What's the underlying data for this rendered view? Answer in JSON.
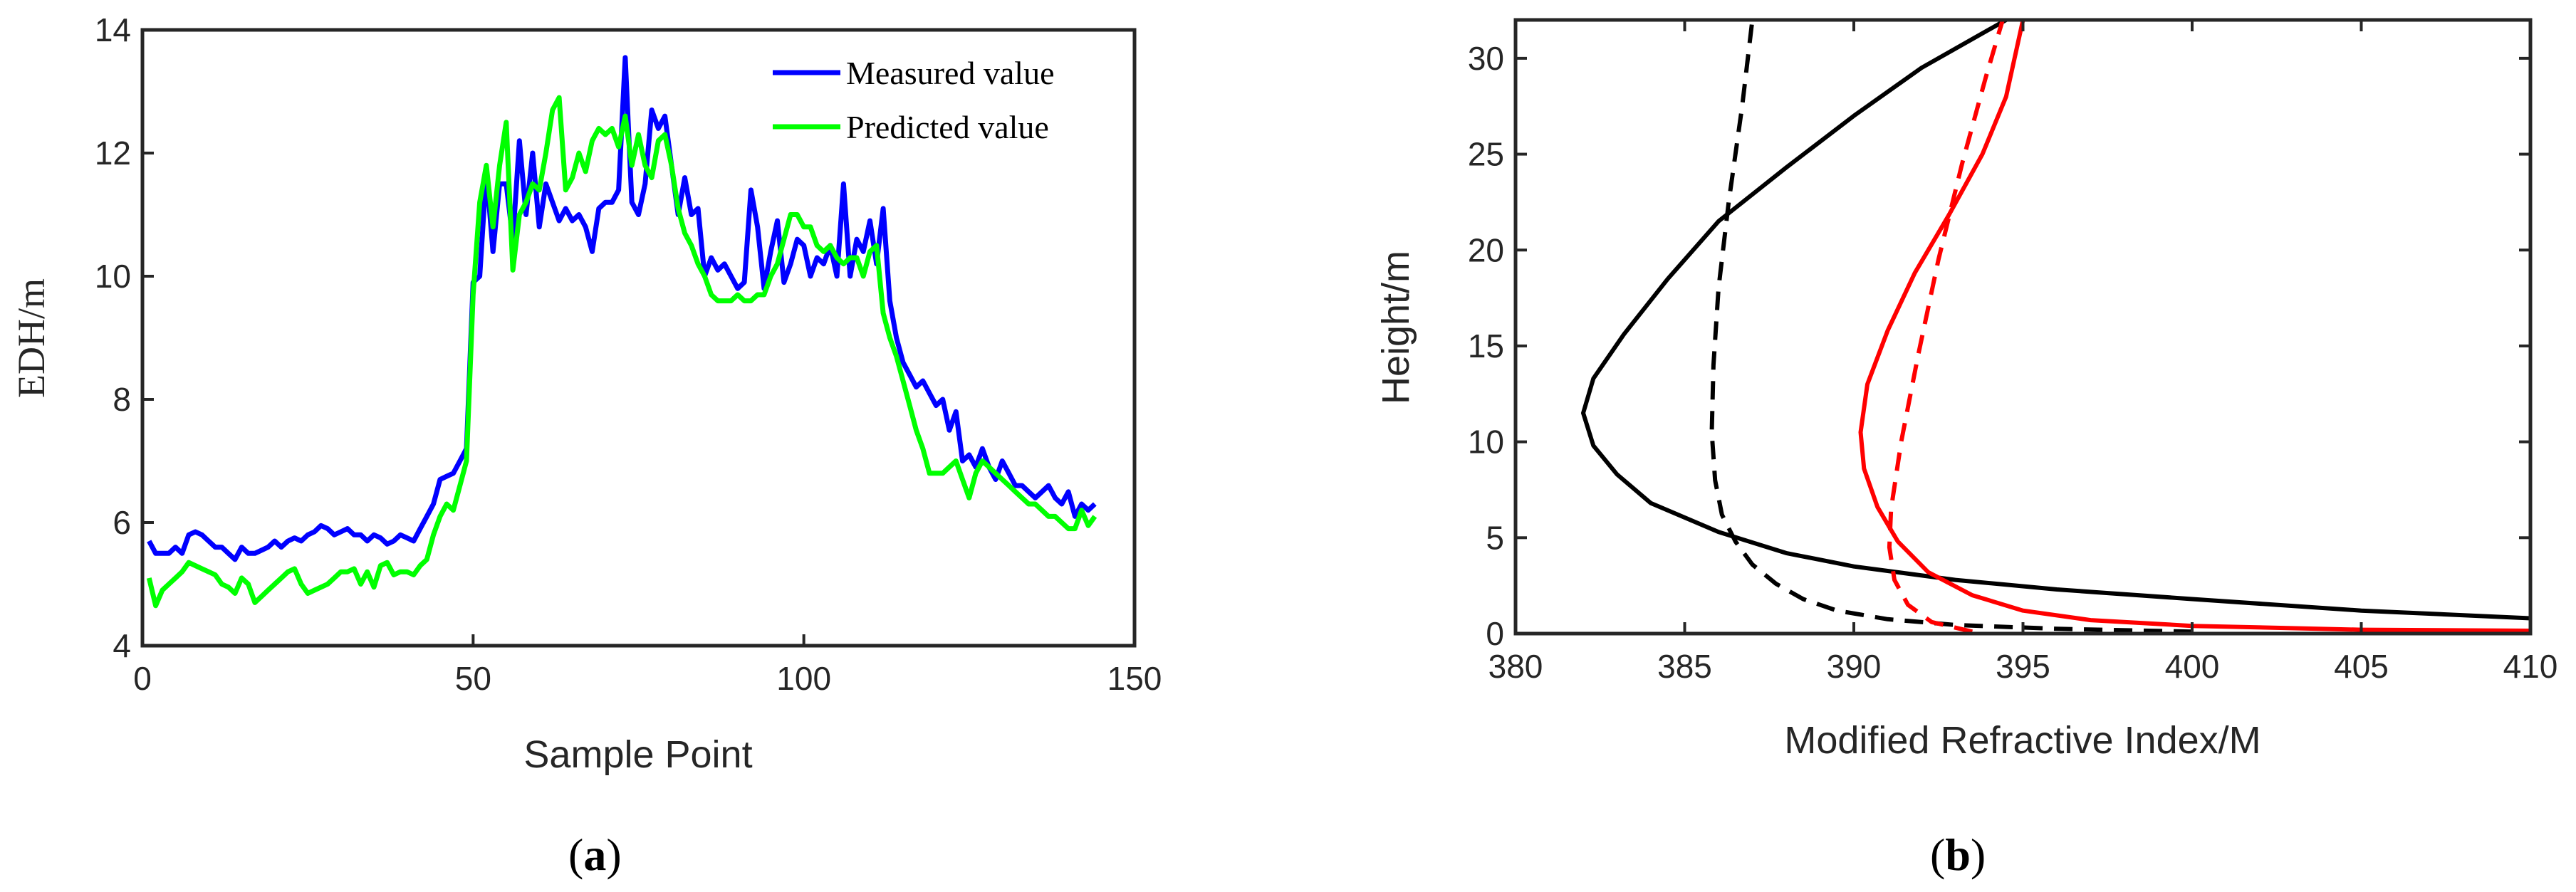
{
  "chart_data": [
    {
      "type": "line",
      "panel_label_open": "(",
      "panel_label_letter": "a",
      "panel_label_close": ")",
      "xlabel": "Sample Point",
      "ylabel": "EDH/m",
      "xlim": [
        0,
        150
      ],
      "ylim": [
        4,
        14
      ],
      "xticks": [
        0,
        50,
        100,
        150
      ],
      "yticks": [
        4,
        6,
        8,
        10,
        12,
        14
      ],
      "legend_position": "top-right",
      "series": [
        {
          "name": "Measured value",
          "color": "#0000ff",
          "x": [
            1,
            2,
            3,
            4,
            5,
            6,
            7,
            8,
            9,
            10,
            11,
            12,
            13,
            14,
            15,
            16,
            17,
            18,
            19,
            20,
            21,
            22,
            23,
            24,
            25,
            26,
            27,
            28,
            29,
            30,
            31,
            32,
            33,
            34,
            35,
            36,
            37,
            38,
            39,
            40,
            41,
            42,
            43,
            44,
            45,
            46,
            47,
            48,
            49,
            50,
            51,
            52,
            53,
            54,
            55,
            56,
            57,
            58,
            59,
            60,
            61,
            62,
            63,
            64,
            65,
            66,
            67,
            68,
            69,
            70,
            71,
            72,
            73,
            74,
            75,
            76,
            77,
            78,
            79,
            80,
            81,
            82,
            83,
            84,
            85,
            86,
            87,
            88,
            89,
            90,
            91,
            92,
            93,
            94,
            95,
            96,
            97,
            98,
            99,
            100,
            101,
            102,
            103,
            104,
            105,
            106,
            107,
            108,
            109,
            110,
            111,
            112,
            113,
            114,
            115,
            116,
            117,
            118,
            119,
            120,
            121,
            122,
            123,
            124,
            125,
            126,
            127,
            128,
            129,
            130,
            131,
            132,
            133,
            134,
            135,
            136,
            137,
            138,
            139,
            140,
            141,
            142,
            143,
            144
          ],
          "values": [
            5.7,
            5.5,
            5.5,
            5.5,
            5.6,
            5.5,
            5.8,
            5.85,
            5.8,
            5.7,
            5.6,
            5.6,
            5.5,
            5.4,
            5.6,
            5.5,
            5.5,
            5.55,
            5.6,
            5.7,
            5.6,
            5.7,
            5.75,
            5.7,
            5.8,
            5.85,
            5.95,
            5.9,
            5.8,
            5.85,
            5.9,
            5.8,
            5.8,
            5.7,
            5.8,
            5.75,
            5.65,
            5.7,
            5.8,
            5.75,
            5.7,
            5.9,
            6.1,
            6.3,
            6.7,
            6.75,
            6.8,
            7.0,
            7.2,
            9.9,
            10.0,
            11.7,
            10.4,
            11.5,
            11.5,
            10.6,
            12.2,
            11.0,
            12.0,
            10.8,
            11.5,
            11.2,
            10.9,
            11.1,
            10.9,
            11.0,
            10.8,
            10.4,
            11.1,
            11.2,
            11.2,
            11.4,
            13.55,
            11.2,
            11.0,
            11.5,
            12.7,
            12.4,
            12.6,
            11.8,
            11.0,
            11.6,
            11.0,
            11.1,
            10.0,
            10.3,
            10.1,
            10.2,
            10.0,
            9.8,
            9.9,
            11.4,
            10.8,
            9.8,
            10.4,
            10.9,
            9.9,
            10.2,
            10.6,
            10.5,
            10.0,
            10.3,
            10.2,
            10.5,
            10.0,
            11.5,
            10.0,
            10.6,
            10.4,
            10.9,
            10.2,
            11.1,
            9.6,
            9.0,
            8.6,
            8.4,
            8.2,
            8.3,
            8.1,
            7.9,
            8.0,
            7.5,
            7.8,
            7.0,
            7.1,
            6.9,
            7.2,
            6.9,
            6.7,
            7.0,
            6.8,
            6.6,
            6.6,
            6.5,
            6.4,
            6.5,
            6.6,
            6.4,
            6.3,
            6.5,
            6.1,
            6.3,
            6.2,
            6.3
          ]
        },
        {
          "name": "Predicted value",
          "color": "#00ff00",
          "x": [
            1,
            2,
            3,
            4,
            5,
            6,
            7,
            8,
            9,
            10,
            11,
            12,
            13,
            14,
            15,
            16,
            17,
            18,
            19,
            20,
            21,
            22,
            23,
            24,
            25,
            26,
            27,
            28,
            29,
            30,
            31,
            32,
            33,
            34,
            35,
            36,
            37,
            38,
            39,
            40,
            41,
            42,
            43,
            44,
            45,
            46,
            47,
            48,
            49,
            50,
            51,
            52,
            53,
            54,
            55,
            56,
            57,
            58,
            59,
            60,
            61,
            62,
            63,
            64,
            65,
            66,
            67,
            68,
            69,
            70,
            71,
            72,
            73,
            74,
            75,
            76,
            77,
            78,
            79,
            80,
            81,
            82,
            83,
            84,
            85,
            86,
            87,
            88,
            89,
            90,
            91,
            92,
            93,
            94,
            95,
            96,
            97,
            98,
            99,
            100,
            101,
            102,
            103,
            104,
            105,
            106,
            107,
            108,
            109,
            110,
            111,
            112,
            113,
            114,
            115,
            116,
            117,
            118,
            119,
            120,
            121,
            122,
            123,
            124,
            125,
            126,
            127,
            128,
            129,
            130,
            131,
            132,
            133,
            134,
            135,
            136,
            137,
            138,
            139,
            140,
            141,
            142,
            143,
            144
          ],
          "values": [
            5.1,
            4.65,
            4.9,
            5.0,
            5.1,
            5.2,
            5.35,
            5.3,
            5.25,
            5.2,
            5.15,
            5.0,
            4.95,
            4.85,
            5.1,
            5.0,
            4.7,
            4.8,
            4.9,
            5.0,
            5.1,
            5.2,
            5.25,
            5.0,
            4.85,
            4.9,
            4.95,
            5.0,
            5.1,
            5.2,
            5.2,
            5.25,
            5.0,
            5.2,
            4.95,
            5.3,
            5.35,
            5.15,
            5.2,
            5.2,
            5.15,
            5.3,
            5.4,
            5.8,
            6.1,
            6.3,
            6.2,
            6.6,
            7.0,
            9.7,
            11.2,
            11.8,
            10.8,
            11.8,
            12.5,
            10.1,
            11.0,
            11.2,
            11.5,
            11.4,
            12.0,
            12.7,
            12.9,
            11.4,
            11.6,
            12.0,
            11.7,
            12.2,
            12.4,
            12.3,
            12.4,
            12.1,
            12.6,
            11.8,
            12.3,
            11.8,
            11.6,
            12.2,
            12.3,
            11.8,
            11.1,
            10.7,
            10.5,
            10.2,
            10.0,
            9.7,
            9.6,
            9.6,
            9.6,
            9.7,
            9.6,
            9.6,
            9.7,
            9.7,
            10.0,
            10.2,
            10.6,
            11.0,
            11.0,
            10.8,
            10.8,
            10.5,
            10.4,
            10.5,
            10.3,
            10.2,
            10.3,
            10.3,
            10.0,
            10.4,
            10.5,
            9.4,
            9.0,
            8.7,
            8.3,
            7.9,
            7.5,
            7.2,
            6.8,
            6.8,
            6.8,
            6.9,
            7.0,
            6.7,
            6.4,
            6.8,
            7.0,
            6.9,
            6.8,
            6.7,
            6.6,
            6.5,
            6.4,
            6.3,
            6.3,
            6.2,
            6.1,
            6.1,
            6.0,
            5.9,
            5.9,
            6.2,
            5.95,
            6.1
          ]
        }
      ]
    },
    {
      "type": "line",
      "panel_label_open": "(",
      "panel_label_letter": "b",
      "panel_label_close": ")",
      "xlabel": "Modified Refractive Index/M",
      "ylabel": "Height/m",
      "xlim": [
        380,
        410
      ],
      "ylim": [
        0,
        32
      ],
      "xticks": [
        380,
        385,
        390,
        395,
        400,
        405,
        410
      ],
      "yticks": [
        0,
        5,
        10,
        15,
        20,
        25,
        30
      ],
      "series": [
        {
          "name": "black solid",
          "color": "#000000",
          "dash": "solid",
          "x": [
            410,
            405,
            400,
            396,
            393,
            390,
            388,
            386,
            384,
            383,
            382.3,
            382.0,
            382.3,
            383.2,
            384.5,
            386.0,
            388.0,
            390.0,
            392.0,
            393.5,
            394.5
          ],
          "y": [
            0.8,
            1.2,
            1.8,
            2.3,
            2.8,
            3.5,
            4.2,
            5.3,
            6.8,
            8.3,
            9.8,
            11.5,
            13.3,
            15.6,
            18.5,
            21.5,
            24.3,
            27.0,
            29.5,
            31.0,
            32.0
          ]
        },
        {
          "name": "black dashed",
          "color": "#000000",
          "dash": "dashed",
          "x": [
            400,
            396,
            393,
            391,
            389.5,
            388.5,
            387.7,
            387.0,
            386.5,
            386.1,
            385.9,
            385.8,
            385.85,
            386.0,
            386.3,
            386.7,
            387.0
          ],
          "y": [
            0.1,
            0.25,
            0.45,
            0.75,
            1.2,
            1.8,
            2.6,
            3.6,
            4.8,
            6.2,
            8.0,
            10.5,
            14.0,
            18.0,
            22.5,
            27.5,
            32.0
          ]
        },
        {
          "name": "red solid",
          "color": "#ff0000",
          "dash": "solid",
          "x": [
            410,
            405,
            400,
            397,
            395,
            393.5,
            392.2,
            391.3,
            390.7,
            390.3,
            390.2,
            390.4,
            391.0,
            391.8,
            392.8,
            393.8,
            394.5,
            395.0
          ],
          "y": [
            0.15,
            0.2,
            0.4,
            0.7,
            1.2,
            2.0,
            3.2,
            4.8,
            6.6,
            8.6,
            10.5,
            13.0,
            15.8,
            18.8,
            21.8,
            25.0,
            28.0,
            32.0
          ]
        },
        {
          "name": "red dashed",
          "color": "#ff0000",
          "dash": "dashed",
          "x": [
            393.5,
            392.3,
            391.6,
            391.2,
            391.05,
            391.1,
            391.4,
            391.9,
            392.5,
            393.2,
            393.9,
            394.4
          ],
          "y": [
            0.1,
            0.6,
            1.5,
            2.8,
            4.5,
            6.5,
            10.0,
            14.5,
            19.5,
            24.5,
            29.0,
            32.0
          ]
        }
      ]
    }
  ]
}
